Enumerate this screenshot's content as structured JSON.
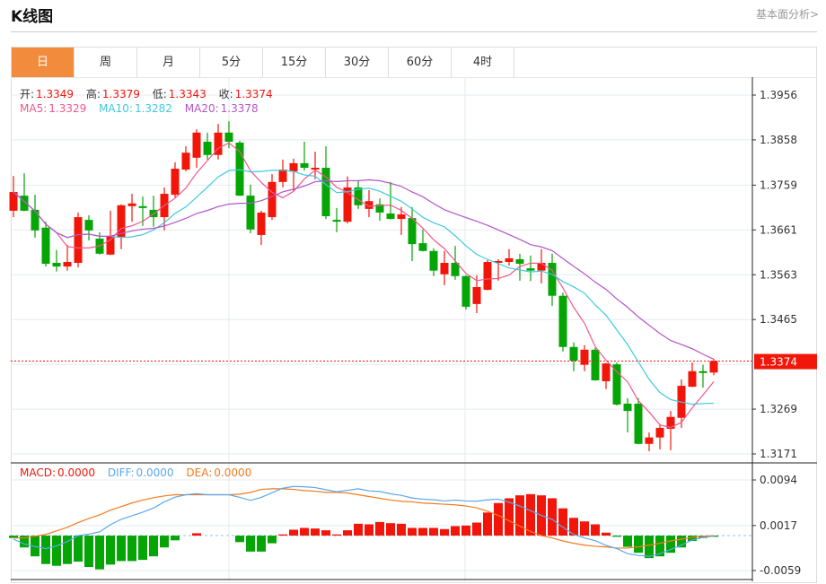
{
  "header": {
    "title": "K线图",
    "link": "基本面分析>"
  },
  "tabs": [
    {
      "label": "日",
      "active": true
    },
    {
      "label": "周"
    },
    {
      "label": "月"
    },
    {
      "label": "5分"
    },
    {
      "label": "15分"
    },
    {
      "label": "30分"
    },
    {
      "label": "60分"
    },
    {
      "label": "4时"
    }
  ],
  "ohlc_legend": {
    "open_label": "开:",
    "open": "1.3349",
    "high_label": "高:",
    "high": "1.3379",
    "low_label": "低:",
    "low": "1.3343",
    "close_label": "收:",
    "close": "1.3374"
  },
  "ma_legend": {
    "ma5_label": "MA5:",
    "ma5": "1.3329",
    "ma10_label": "MA10:",
    "ma10": "1.3282",
    "ma20_label": "MA20:",
    "ma20": "1.3378"
  },
  "macd_legend": {
    "macd_label": "MACD:",
    "macd": "0.0000",
    "diff_label": "DIFF:",
    "diff": "0.0000",
    "dea_label": "DEA:",
    "dea": "0.0000"
  },
  "colors": {
    "up": "#f2160a",
    "down": "#05a505",
    "ma5": "#f0578c",
    "ma10": "#3ec9dd",
    "ma20": "#b354c6",
    "diff": "#5aa8ee",
    "dea": "#f47a1e",
    "active_tab": "#f28c3c"
  },
  "chart_data": [
    {
      "type": "candlestick",
      "ylim": [
        1.3171,
        1.3956
      ],
      "y_ticks": [
        "1.3956",
        "1.3858",
        "1.3759",
        "1.3661",
        "1.3563",
        "1.3465",
        "1.3269",
        "1.3171"
      ],
      "current_price": "1.3374",
      "grid": true,
      "moving_averages": [
        "MA5",
        "MA10",
        "MA20"
      ],
      "ohlc": [
        [
          1.3703,
          1.3779,
          1.3689,
          1.3744
        ],
        [
          1.3736,
          1.3785,
          1.3702,
          1.3703
        ],
        [
          1.3705,
          1.3738,
          1.3644,
          1.366
        ],
        [
          1.3666,
          1.3679,
          1.3581,
          1.3587
        ],
        [
          1.3589,
          1.3617,
          1.357,
          1.3581
        ],
        [
          1.3581,
          1.3628,
          1.3572,
          1.3591
        ],
        [
          1.3589,
          1.3699,
          1.3579,
          1.3689
        ],
        [
          1.3683,
          1.3693,
          1.3638,
          1.366
        ],
        [
          1.3642,
          1.3656,
          1.3607,
          1.3609
        ],
        [
          1.3607,
          1.3703,
          1.3606,
          1.3648
        ],
        [
          1.3646,
          1.3717,
          1.3619,
          1.3715
        ],
        [
          1.3713,
          1.374,
          1.3679,
          1.3719
        ],
        [
          1.3713,
          1.3734,
          1.367,
          1.3709
        ],
        [
          1.3705,
          1.3736,
          1.3668,
          1.3689
        ],
        [
          1.3689,
          1.3754,
          1.366,
          1.374
        ],
        [
          1.3738,
          1.3809,
          1.3732,
          1.3795
        ],
        [
          1.3793,
          1.3844,
          1.3789,
          1.383
        ],
        [
          1.3819,
          1.3881,
          1.3797,
          1.3874
        ],
        [
          1.3854,
          1.3874,
          1.3815,
          1.3825
        ],
        [
          1.3825,
          1.3893,
          1.3815,
          1.3874
        ],
        [
          1.3874,
          1.3899,
          1.384,
          1.3854
        ],
        [
          1.3852,
          1.3856,
          1.3735,
          1.3736
        ],
        [
          1.3736,
          1.376,
          1.3654,
          1.3662
        ],
        [
          1.365,
          1.3703,
          1.3628,
          1.3699
        ],
        [
          1.3689,
          1.3783,
          1.3683,
          1.3766
        ],
        [
          1.3766,
          1.3815,
          1.3754,
          1.3793
        ],
        [
          1.3789,
          1.3817,
          1.3746,
          1.3807
        ],
        [
          1.3807,
          1.3854,
          1.3791,
          1.3797
        ],
        [
          1.3793,
          1.3832,
          1.3772,
          1.3797
        ],
        [
          1.3797,
          1.3844,
          1.3685,
          1.3691
        ],
        [
          1.3683,
          1.3709,
          1.3656,
          1.3679
        ],
        [
          1.3679,
          1.3778,
          1.3675,
          1.3754
        ],
        [
          1.3754,
          1.377,
          1.3707,
          1.3715
        ],
        [
          1.3707,
          1.3748,
          1.3689,
          1.3724
        ],
        [
          1.3717,
          1.373,
          1.3681,
          1.3699
        ],
        [
          1.3697,
          1.3766,
          1.3684,
          1.3685
        ],
        [
          1.3685,
          1.3711,
          1.365,
          1.3695
        ],
        [
          1.3687,
          1.3711,
          1.3593,
          1.363
        ],
        [
          1.3632,
          1.3662,
          1.3614,
          1.3615
        ],
        [
          1.3615,
          1.3621,
          1.356,
          1.3572
        ],
        [
          1.3564,
          1.3615,
          1.354,
          1.3589
        ],
        [
          1.3589,
          1.3626,
          1.3552,
          1.356
        ],
        [
          1.356,
          1.3562,
          1.3487,
          1.3493
        ],
        [
          1.3499,
          1.3562,
          1.3479,
          1.3536
        ],
        [
          1.353,
          1.3595,
          1.3529,
          1.3591
        ],
        [
          1.3589,
          1.3597,
          1.355,
          1.3593
        ],
        [
          1.3591,
          1.3619,
          1.3583,
          1.3599
        ],
        [
          1.3597,
          1.3609,
          1.355,
          1.3587
        ],
        [
          1.3577,
          1.3605,
          1.3549,
          1.3572
        ],
        [
          1.3572,
          1.3619,
          1.3544,
          1.3589
        ],
        [
          1.3589,
          1.3609,
          1.3495,
          1.3517
        ],
        [
          1.3517,
          1.3524,
          1.3395,
          1.3405
        ],
        [
          1.3405,
          1.3415,
          1.3352,
          1.3375
        ],
        [
          1.3366,
          1.3409,
          1.3352,
          1.3399
        ],
        [
          1.3399,
          1.3403,
          1.3331,
          1.3332
        ],
        [
          1.333,
          1.337,
          1.3313,
          1.3369
        ],
        [
          1.3367,
          1.3371,
          1.3277,
          1.3279
        ],
        [
          1.3281,
          1.3293,
          1.3218,
          1.3265
        ],
        [
          1.3281,
          1.3293,
          1.3192,
          1.3193
        ],
        [
          1.3193,
          1.3218,
          1.3177,
          1.3207
        ],
        [
          1.3207,
          1.3236,
          1.3181,
          1.3228
        ],
        [
          1.3226,
          1.3265,
          1.3179,
          1.3252
        ],
        [
          1.325,
          1.3334,
          1.3228,
          1.332
        ],
        [
          1.3318,
          1.3371,
          1.3317,
          1.3352
        ],
        [
          1.3352,
          1.3366,
          1.3316,
          1.3348
        ],
        [
          1.3349,
          1.3379,
          1.3343,
          1.3374
        ]
      ]
    },
    {
      "type": "bar",
      "ylim": [
        -0.0059,
        0.0094
      ],
      "y_ticks": [
        "0.0094",
        "0.0017",
        "-0.0059"
      ],
      "grid": true,
      "macd_hist": [
        -0.0004,
        -0.002,
        -0.0035,
        -0.0048,
        -0.0051,
        -0.0048,
        -0.0044,
        -0.0053,
        -0.0057,
        -0.0049,
        -0.0043,
        -0.0043,
        -0.0041,
        -0.0035,
        -0.002,
        -0.0008,
        0.0,
        0.0004,
        0.0,
        0.0,
        0.0,
        -0.0011,
        -0.0027,
        -0.0027,
        -0.0013,
        0.0002,
        0.001,
        0.0013,
        0.0012,
        0.0009,
        0.0002,
        0.0009,
        0.002,
        0.0019,
        0.0023,
        0.0021,
        0.002,
        0.0013,
        0.0013,
        0.0013,
        0.0011,
        0.0016,
        0.0017,
        0.0022,
        0.0039,
        0.0055,
        0.0063,
        0.0068,
        0.007,
        0.0068,
        0.0063,
        0.0046,
        0.003,
        0.0024,
        0.0019,
        0.0005,
        -0.0002,
        -0.0019,
        -0.0029,
        -0.0038,
        -0.0035,
        -0.0029,
        -0.002,
        -0.0009,
        -0.0004,
        -0.0002
      ],
      "dea": [
        -0.0004,
        -0.0004,
        -0.0001,
        0.0002,
        0.0008,
        0.0014,
        0.0022,
        0.0029,
        0.0035,
        0.0043,
        0.0049,
        0.0055,
        0.006,
        0.0064,
        0.0067,
        0.0069,
        0.0069,
        0.0069,
        0.0069,
        0.0069,
        0.0069,
        0.007,
        0.0073,
        0.0078,
        0.0079,
        0.0079,
        0.0078,
        0.0076,
        0.0075,
        0.0073,
        0.0073,
        0.0072,
        0.0069,
        0.0066,
        0.0063,
        0.006,
        0.0058,
        0.0057,
        0.0055,
        0.0054,
        0.0053,
        0.0052,
        0.005,
        0.0047,
        0.0041,
        0.0034,
        0.0025,
        0.0016,
        0.0007,
        0.0,
        -0.0004,
        -0.0009,
        -0.0013,
        -0.0016,
        -0.0018,
        -0.0019,
        -0.0021,
        -0.0021,
        -0.0019,
        -0.0016,
        -0.0013,
        -0.0009,
        -0.0006,
        -0.0003,
        -0.0001,
        0.0
      ]
    }
  ]
}
